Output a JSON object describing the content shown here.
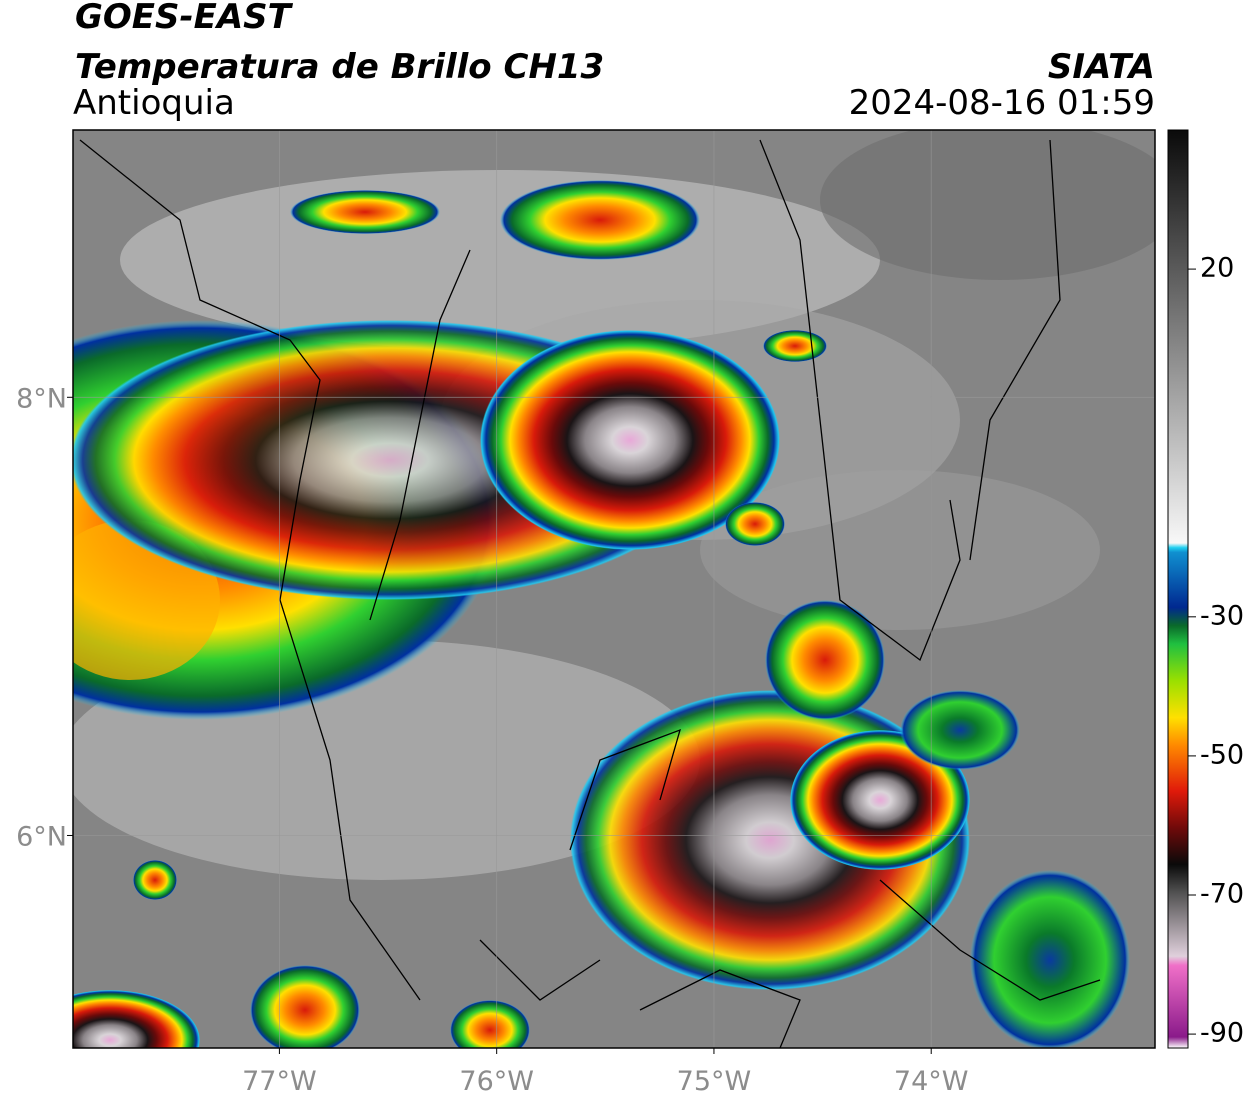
{
  "header": {
    "satellite": "GOES-EAST",
    "product": "Temperatura de Brillo CH13",
    "region": "Antioquia",
    "agency": "SIATA",
    "datetime": "2024-08-16 01:59"
  },
  "map": {
    "xlim": [
      -77.95,
      -72.97
    ],
    "ylim": [
      5.03,
      9.22
    ],
    "xticks": [
      {
        "value": -77,
        "label": "77°W"
      },
      {
        "value": -76,
        "label": "76°W"
      },
      {
        "value": -75,
        "label": "75°W"
      },
      {
        "value": -74,
        "label": "74°W"
      }
    ],
    "yticks": [
      {
        "value": 8,
        "label": "8°N"
      },
      {
        "value": 6,
        "label": "6°N"
      }
    ]
  },
  "colorbar": {
    "lim": [
      -92,
      40
    ],
    "ticks": [
      20,
      -30,
      -50,
      -70,
      -90
    ]
  }
}
